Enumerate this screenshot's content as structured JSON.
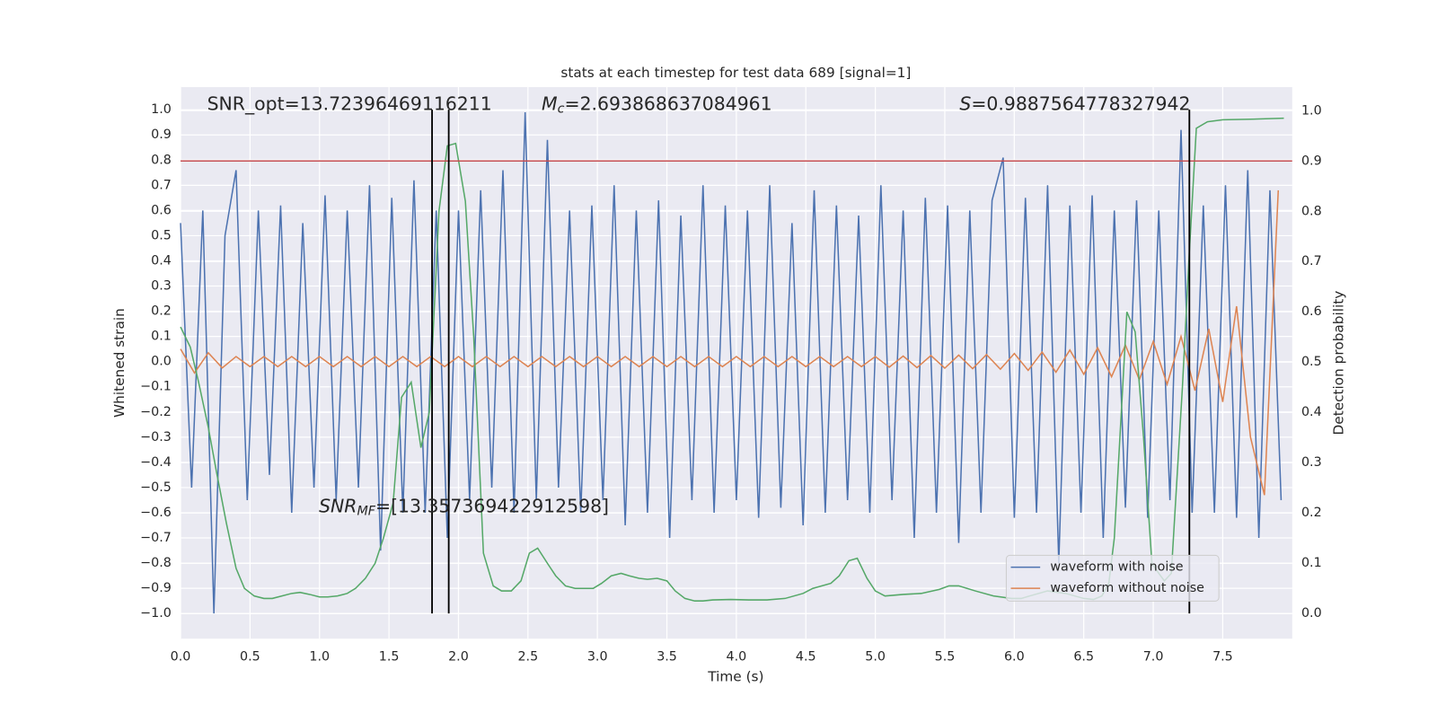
{
  "chart_data": {
    "type": "line",
    "title": "stats at each timestep for test data 689 [signal=1]",
    "xlabel": "Time (s)",
    "ylabel": "Whitened strain",
    "y2label": "Detection probability",
    "annotations": {
      "snr_opt": "SNR_opt=13.72396469116211",
      "mc": {
        "symbol": "M",
        "subscript": "c",
        "text": "=2.693868637084961"
      },
      "s": {
        "symbol": "S",
        "text": "=0.9887564778327942"
      },
      "snr_mf": {
        "symbol": "SNR",
        "subscript": "MF",
        "text": "=[13.357369422912598]"
      }
    },
    "xlim": [
      0,
      8
    ],
    "ylim": [
      -1.1,
      1.09
    ],
    "y2lim": [
      -0.05,
      1.047
    ],
    "xticks": [
      {
        "value": 0,
        "label": "0.0"
      },
      0.5,
      {
        "value": 1,
        "label": "1.0"
      },
      1.5,
      {
        "value": 2,
        "label": "2.0"
      },
      2.5,
      {
        "value": 3,
        "label": "3.0"
      },
      3.5,
      {
        "value": 4,
        "label": "4.0"
      },
      4.5,
      {
        "value": 5,
        "label": "5.0"
      },
      5.5,
      {
        "value": 6,
        "label": "6.0"
      },
      6.5,
      {
        "value": 7,
        "label": "7.0"
      },
      7.5
    ],
    "yticks": [
      {
        "value": -1,
        "label": "−1.0"
      },
      {
        "value": -0.9,
        "label": "−0.9"
      },
      {
        "value": -0.8,
        "label": "−0.8"
      },
      {
        "value": -0.7,
        "label": "−0.7"
      },
      {
        "value": -0.6,
        "label": "−0.6"
      },
      {
        "value": -0.5,
        "label": "−0.5"
      },
      {
        "value": -0.4,
        "label": "−0.4"
      },
      {
        "value": -0.3,
        "label": "−0.3"
      },
      {
        "value": -0.2,
        "label": "−0.2"
      },
      {
        "value": -0.1,
        "label": "−0.1"
      },
      {
        "value": 0,
        "label": "0.0"
      },
      0.1,
      0.2,
      0.3,
      0.4,
      0.5,
      0.6,
      0.7,
      0.8,
      0.9,
      {
        "value": 1,
        "label": "1.0"
      }
    ],
    "y2ticks": [
      {
        "value": 0,
        "label": "0.0"
      },
      0.1,
      0.2,
      0.3,
      0.4,
      0.5,
      0.6,
      0.7,
      0.8,
      0.9,
      {
        "value": 1,
        "label": "1.0"
      }
    ],
    "grid": true,
    "legend": "lower right",
    "vlines": [
      1.81,
      1.93,
      7.26
    ],
    "vline_span": [
      -1.0,
      1.0
    ],
    "vline_color": "#000000",
    "threshold": 0.9,
    "threshold_color": "#c44e52",
    "series": [
      {
        "name": "waveform with noise",
        "color": "#4c72b0",
        "x": [
          0,
          0.08,
          0.16,
          0.24,
          0.32,
          0.4,
          0.48,
          0.56,
          0.64,
          0.72,
          0.8,
          0.88,
          0.96,
          1.04,
          1.12,
          1.2,
          1.28,
          1.36,
          1.44,
          1.52,
          1.6,
          1.68,
          1.76,
          1.84,
          1.92,
          2,
          2.08,
          2.16,
          2.24,
          2.32,
          2.4,
          2.48,
          2.56,
          2.64,
          2.72,
          2.8,
          2.88,
          2.96,
          3.04,
          3.12,
          3.2,
          3.28,
          3.36,
          3.44,
          3.52,
          3.6,
          3.68,
          3.76,
          3.84,
          3.92,
          4,
          4.08,
          4.16,
          4.24,
          4.32,
          4.4,
          4.48,
          4.56,
          4.64,
          4.72,
          4.8,
          4.88,
          4.96,
          5.04,
          5.12,
          5.2,
          5.28,
          5.36,
          5.44,
          5.52,
          5.6,
          5.68,
          5.76,
          5.84,
          5.92,
          6,
          6.08,
          6.16,
          6.24,
          6.32,
          6.4,
          6.48,
          6.56,
          6.64,
          6.72,
          6.8,
          6.88,
          6.96,
          7.04,
          7.12,
          7.2,
          7.28,
          7.36,
          7.44,
          7.52,
          7.6,
          7.68,
          7.76,
          7.84,
          7.92
        ],
        "values": [
          0.55,
          -0.5,
          0.6,
          -1.0,
          0.5,
          0.76,
          -0.55,
          0.6,
          -0.45,
          0.62,
          -0.6,
          0.55,
          -0.5,
          0.66,
          -0.55,
          0.6,
          -0.5,
          0.7,
          -0.75,
          0.65,
          -0.6,
          0.72,
          -0.6,
          0.6,
          -0.7,
          0.6,
          -0.55,
          0.68,
          -0.5,
          0.76,
          -0.6,
          0.99,
          -0.55,
          0.88,
          -0.5,
          0.6,
          -0.6,
          0.62,
          -0.55,
          0.7,
          -0.65,
          0.6,
          -0.6,
          0.64,
          -0.7,
          0.58,
          -0.55,
          0.7,
          -0.6,
          0.62,
          -0.55,
          0.6,
          -0.62,
          0.7,
          -0.58,
          0.55,
          -0.65,
          0.68,
          -0.6,
          0.62,
          -0.55,
          0.58,
          -0.6,
          0.7,
          -0.55,
          0.6,
          -0.7,
          0.65,
          -0.6,
          0.62,
          -0.72,
          0.6,
          -0.6,
          0.64,
          0.81,
          -0.62,
          0.65,
          -0.6,
          0.7,
          -0.8,
          0.62,
          -0.6,
          0.66,
          -0.7,
          0.6,
          -0.58,
          0.64,
          -0.62,
          0.6,
          -0.55,
          0.92,
          -0.6,
          0.62,
          -0.6,
          0.7,
          -0.62,
          0.76,
          -0.7,
          0.68,
          -0.55
        ]
      },
      {
        "name": "waveform without noise",
        "color": "#dd8452",
        "x": [
          0,
          0.1,
          0.2,
          0.3,
          0.4,
          0.5,
          0.6,
          0.7,
          0.8,
          0.9,
          1,
          1.1,
          1.2,
          1.3,
          1.4,
          1.5,
          1.6,
          1.7,
          1.8,
          1.9,
          2,
          2.1,
          2.2,
          2.3,
          2.4,
          2.5,
          2.6,
          2.7,
          2.8,
          2.9,
          3,
          3.1,
          3.2,
          3.3,
          3.4,
          3.5,
          3.6,
          3.7,
          3.8,
          3.9,
          4,
          4.1,
          4.2,
          4.3,
          4.4,
          4.5,
          4.6,
          4.7,
          4.8,
          4.9,
          5,
          5.1,
          5.2,
          5.3,
          5.4,
          5.5,
          5.6,
          5.7,
          5.8,
          5.9,
          6,
          6.1,
          6.2,
          6.3,
          6.4,
          6.5,
          6.6,
          6.7,
          6.8,
          6.9,
          7,
          7.1,
          7.2,
          7.3,
          7.4,
          7.5,
          7.6,
          7.7,
          7.8,
          7.9
        ],
        "values": [
          0.05,
          -0.045,
          0.035,
          -0.025,
          0.02,
          -0.02,
          0.02,
          -0.02,
          0.02,
          -0.02,
          0.02,
          -0.02,
          0.02,
          -0.02,
          0.02,
          -0.02,
          0.02,
          -0.02,
          0.02,
          -0.02,
          0.02,
          -0.02,
          0.02,
          -0.02,
          0.02,
          -0.02,
          0.02,
          -0.02,
          0.02,
          -0.02,
          0.02,
          -0.02,
          0.02,
          -0.02,
          0.02,
          -0.02,
          0.02,
          -0.02,
          0.02,
          -0.02,
          0.02,
          -0.02,
          0.02,
          -0.02,
          0.02,
          -0.02,
          0.02,
          -0.02,
          0.02,
          -0.02,
          0.02,
          -0.022,
          0.022,
          -0.024,
          0.024,
          -0.026,
          0.026,
          -0.028,
          0.028,
          -0.03,
          0.032,
          -0.035,
          0.038,
          -0.042,
          0.046,
          -0.05,
          0.055,
          -0.06,
          0.066,
          -0.072,
          0.08,
          -0.09,
          0.1,
          -0.115,
          0.13,
          -0.16,
          0.22,
          -0.3,
          -0.53,
          0.68
        ]
      },
      {
        "color": "#55a868",
        "axis": "y2",
        "x": [
          0,
          0.07,
          0.13,
          0.2,
          0.26,
          0.33,
          0.4,
          0.46,
          0.53,
          0.6,
          0.66,
          0.73,
          0.8,
          0.86,
          0.93,
          1,
          1.06,
          1.13,
          1.2,
          1.26,
          1.33,
          1.4,
          1.46,
          1.53,
          1.59,
          1.66,
          1.73,
          1.79,
          1.86,
          1.92,
          1.98,
          2.05,
          2.11,
          2.18,
          2.25,
          2.31,
          2.38,
          2.45,
          2.51,
          2.57,
          2.64,
          2.7,
          2.77,
          2.84,
          2.9,
          2.97,
          3.03,
          3.1,
          3.17,
          3.23,
          3.3,
          3.36,
          3.43,
          3.5,
          3.56,
          3.63,
          3.7,
          3.76,
          3.83,
          3.96,
          4.09,
          4.22,
          4.35,
          4.48,
          4.55,
          4.68,
          4.74,
          4.81,
          4.87,
          4.94,
          5,
          5.07,
          5.2,
          5.33,
          5.46,
          5.53,
          5.6,
          5.72,
          5.85,
          5.98,
          6.05,
          6.11,
          6.24,
          6.37,
          6.5,
          6.57,
          6.63,
          6.68,
          6.72,
          6.76,
          6.81,
          6.87,
          6.93,
          6.99,
          7.04,
          7.08,
          7.13,
          7.21,
          7.26,
          7.31,
          7.39,
          7.5,
          7.7,
          7.94
        ],
        "values": [
          0.57,
          0.53,
          0.46,
          0.37,
          0.28,
          0.18,
          0.09,
          0.05,
          0.035,
          0.03,
          0.03,
          0.035,
          0.04,
          0.042,
          0.038,
          0.033,
          0.033,
          0.035,
          0.04,
          0.05,
          0.07,
          0.1,
          0.15,
          0.22,
          0.43,
          0.46,
          0.33,
          0.4,
          0.8,
          0.93,
          0.935,
          0.82,
          0.55,
          0.12,
          0.055,
          0.045,
          0.045,
          0.065,
          0.12,
          0.13,
          0.1,
          0.075,
          0.055,
          0.05,
          0.05,
          0.05,
          0.06,
          0.075,
          0.08,
          0.075,
          0.07,
          0.068,
          0.07,
          0.065,
          0.045,
          0.03,
          0.025,
          0.025,
          0.027,
          0.028,
          0.027,
          0.027,
          0.03,
          0.04,
          0.05,
          0.06,
          0.075,
          0.105,
          0.11,
          0.07,
          0.045,
          0.035,
          0.038,
          0.04,
          0.048,
          0.055,
          0.055,
          0.045,
          0.035,
          0.03,
          0.03,
          0.035,
          0.045,
          0.04,
          0.03,
          0.028,
          0.035,
          0.06,
          0.15,
          0.35,
          0.6,
          0.56,
          0.35,
          0.1,
          0.08,
          0.065,
          0.08,
          0.45,
          0.72,
          0.965,
          0.978,
          0.982,
          0.983,
          0.985
        ]
      }
    ]
  }
}
